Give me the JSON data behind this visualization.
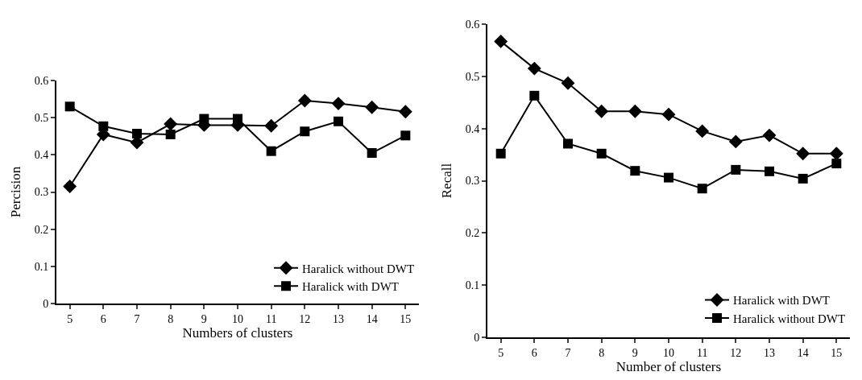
{
  "chart_data": [
    {
      "type": "line",
      "ylabel": "Percision",
      "xlabel": "Numbers of clusters",
      "categories": [
        "5",
        "6",
        "7",
        "8",
        "9",
        "10",
        "11",
        "12",
        "13",
        "14",
        "15"
      ],
      "ylim": [
        0,
        0.6
      ],
      "yticks": [
        0,
        0.1,
        0.2,
        0.3,
        0.4,
        0.5,
        0.6
      ],
      "grid": false,
      "legend": "bottom right",
      "series": [
        {
          "name": "Haralick without DWT",
          "color": "#000000",
          "marker": "diamond",
          "values": [
            0.315,
            0.455,
            0.433,
            0.483,
            0.48,
            0.48,
            0.478,
            0.546,
            0.538,
            0.528,
            0.516
          ]
        },
        {
          "name": "Haralick with DWT",
          "color": "#000000",
          "marker": "square",
          "values": [
            0.53,
            0.477,
            0.457,
            0.455,
            0.497,
            0.497,
            0.41,
            0.463,
            0.49,
            0.405,
            0.452
          ]
        }
      ]
    },
    {
      "type": "line",
      "ylabel": "Recall",
      "xlabel": "Number of clusters",
      "categories": [
        "5",
        "6",
        "7",
        "8",
        "9",
        "10",
        "11",
        "12",
        "13",
        "14",
        "15"
      ],
      "ylim": [
        0,
        0.6
      ],
      "yticks": [
        0,
        0.1,
        0.2,
        0.3,
        0.4,
        0.5,
        0.6
      ],
      "grid": false,
      "legend": "bottom right",
      "series": [
        {
          "name": "Haralick with DWT",
          "color": "#000000",
          "marker": "diamond",
          "values": [
            0.567,
            0.515,
            0.487,
            0.433,
            0.433,
            0.427,
            0.395,
            0.375,
            0.387,
            0.352,
            0.352
          ]
        },
        {
          "name": "Haralick without DWT",
          "color": "#000000",
          "marker": "square",
          "values": [
            0.352,
            0.463,
            0.371,
            0.352,
            0.319,
            0.306,
            0.285,
            0.321,
            0.318,
            0.304,
            0.333
          ]
        }
      ]
    }
  ]
}
